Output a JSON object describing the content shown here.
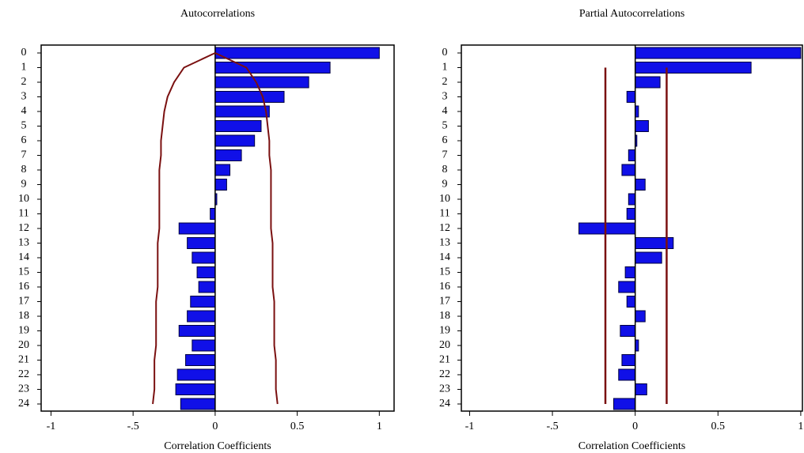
{
  "chart_data": [
    {
      "type": "bar",
      "title": "Autocorrelations",
      "x_label": "Correlation Coefficients",
      "categories": [
        "0",
        "1",
        "2",
        "3",
        "4",
        "5",
        "6",
        "7",
        "8",
        "9",
        "10",
        "11",
        "12",
        "13",
        "14",
        "15",
        "16",
        "17",
        "18",
        "19",
        "20",
        "21",
        "22",
        "23",
        "24"
      ],
      "values": [
        1.0,
        0.7,
        0.57,
        0.42,
        0.33,
        0.28,
        0.24,
        0.16,
        0.09,
        0.07,
        0.01,
        -0.03,
        -0.22,
        -0.17,
        -0.14,
        -0.11,
        -0.1,
        -0.15,
        -0.17,
        -0.22,
        -0.14,
        -0.18,
        -0.23,
        -0.24,
        -0.21
      ],
      "color": "#1010e8",
      "upper_band": [
        0,
        0.19,
        0.25,
        0.29,
        0.31,
        0.32,
        0.33,
        0.33,
        0.34,
        0.34,
        0.34,
        0.34,
        0.34,
        0.35,
        0.35,
        0.35,
        0.35,
        0.36,
        0.36,
        0.36,
        0.36,
        0.37,
        0.37,
        0.37,
        0.38
      ],
      "lower_band": [
        0,
        -0.19,
        -0.25,
        -0.29,
        -0.31,
        -0.32,
        -0.33,
        -0.33,
        -0.34,
        -0.34,
        -0.34,
        -0.34,
        -0.34,
        -0.35,
        -0.35,
        -0.35,
        -0.35,
        -0.36,
        -0.36,
        -0.36,
        -0.36,
        -0.37,
        -0.37,
        -0.37,
        -0.38
      ],
      "band_color": "#7a1010",
      "xlim": [
        -1.06,
        1.09
      ],
      "xticks": [
        -1,
        {
          "value": -0.5,
          "label": "-.5"
        },
        0,
        0.5,
        1
      ]
    },
    {
      "type": "bar",
      "title": "Partial Autocorrelations",
      "x_label": "Correlation Coefficients",
      "categories": [
        "0",
        "1",
        "2",
        "3",
        "4",
        "5",
        "6",
        "7",
        "8",
        "9",
        "10",
        "11",
        "12",
        "13",
        "14",
        "15",
        "16",
        "17",
        "18",
        "19",
        "20",
        "21",
        "22",
        "23",
        "24"
      ],
      "values": [
        1.0,
        0.7,
        0.15,
        -0.05,
        0.02,
        0.08,
        0.01,
        -0.04,
        -0.08,
        0.06,
        -0.04,
        -0.05,
        -0.34,
        0.23,
        0.16,
        -0.06,
        -0.1,
        -0.05,
        0.06,
        -0.09,
        0.02,
        -0.08,
        -0.1,
        0.07,
        -0.13
      ],
      "color": "#1010e8",
      "upper_band": 0.19,
      "lower_band": -0.18,
      "band_color": "#7a1010",
      "xlim": [
        -1.05,
        1.01
      ],
      "xticks": [
        -1,
        {
          "value": -0.5,
          "label": "-.5"
        },
        0,
        0.5,
        1
      ]
    }
  ]
}
